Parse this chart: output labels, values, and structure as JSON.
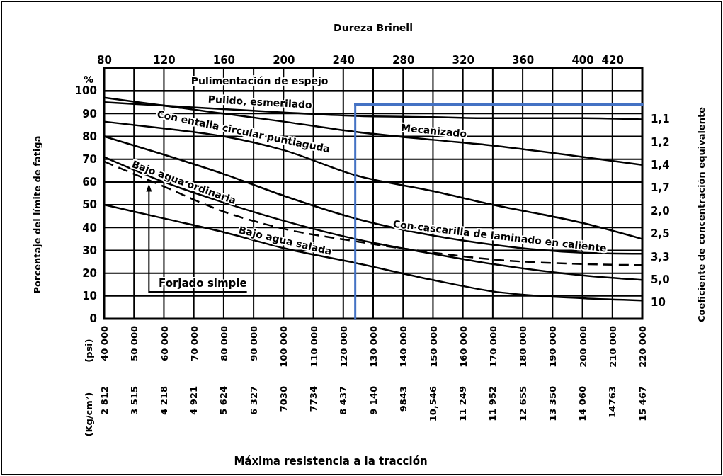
{
  "chart_data": {
    "type": "line",
    "x2label": "Dureza Brinell",
    "ylabel": "Porcentaje del límite de fatiga",
    "annotations": [
      "%",
      "Máxima resistencia a la tracción",
      "(Kg/cm²)",
      "(psi)",
      "Coeficiente de concentración equivalente",
      "2 812",
      "3 515",
      "4 218",
      "4 921",
      "5 624",
      "6 327",
      "7030",
      "7734",
      "8 437",
      "9 140",
      "9843",
      "10,546",
      "11 249",
      "11 952",
      "12 655",
      "13 350",
      "14 060",
      "14763",
      "15 467",
      "1,1",
      "1,2",
      "1,4",
      "1,7",
      "2,0",
      "2,5",
      "3,3",
      "5,0",
      "10"
    ],
    "x": [
      40000,
      60000,
      80000,
      100000,
      124000,
      150000,
      170000,
      200000,
      220000
    ],
    "xlim": [
      40000,
      220000
    ],
    "xticks": [
      {
        "value": 40000,
        "label": "40 000"
      },
      {
        "value": 50000,
        "label": "50 000"
      },
      {
        "value": 60000,
        "label": "60 000"
      },
      {
        "value": 70000,
        "label": "70 000"
      },
      {
        "value": 80000,
        "label": "80 000"
      },
      {
        "value": 90000,
        "label": "90 000"
      },
      {
        "value": 100000,
        "label": "100 000"
      },
      {
        "value": 110000,
        "label": "110 000"
      },
      {
        "value": 120000,
        "label": "120 000"
      },
      {
        "value": 130000,
        "label": "130 000"
      },
      {
        "value": 140000,
        "label": "140 000"
      },
      {
        "value": 150000,
        "label": "150 000"
      },
      {
        "value": 160000,
        "label": "160 000"
      },
      {
        "value": 170000,
        "label": "170 000"
      },
      {
        "value": 180000,
        "label": "180 000"
      },
      {
        "value": 190000,
        "label": "190 000"
      },
      {
        "value": 200000,
        "label": "200 000"
      },
      {
        "value": 210000,
        "label": "210 000"
      },
      {
        "value": 220000,
        "label": "220 000"
      }
    ],
    "x2lim": [
      80,
      440
    ],
    "x2ticks": [
      80,
      120,
      160,
      200,
      240,
      280,
      320,
      360,
      400,
      420
    ],
    "ylim": [
      0,
      110
    ],
    "yticks": [
      0,
      10,
      20,
      30,
      40,
      50,
      60,
      70,
      80,
      90,
      100
    ],
    "grid": true,
    "legend": false,
    "marker": "none",
    "line_style": "solid",
    "series": [
      {
        "name": "Pulimentación de espejo",
        "color": "#000000",
        "values": [
          100,
          100,
          100,
          100,
          100,
          100,
          100,
          100,
          100
        ]
      },
      {
        "name": "Pulido, esmerilado",
        "color": "#000000",
        "values": [
          95,
          93.5,
          92,
          90.5,
          89,
          88.5,
          88,
          88,
          87.5
        ]
      },
      {
        "name": "Mecanizado",
        "color": "#000000",
        "values": [
          97,
          93.5,
          90,
          86.5,
          82,
          78.5,
          76,
          71,
          67.5
        ]
      },
      {
        "name": "Con entalla circular puntiaguda",
        "color": "#000000",
        "values": [
          86.5,
          83.5,
          80,
          74,
          63,
          56,
          50,
          42,
          35
        ]
      },
      {
        "name": "Con cascarilla de laminado en caliente",
        "color": "#000000",
        "values": [
          80,
          72,
          63.5,
          54,
          44,
          36.5,
          32.5,
          29,
          28.5
        ]
      },
      {
        "name": "Bajo agua ordinaria",
        "color": "#000000",
        "values": [
          71,
          60,
          51,
          43,
          35,
          28.5,
          24,
          19,
          17
        ]
      },
      {
        "name": "Forjado simple",
        "color": "#000000",
        "line_style": "dashed",
        "values": [
          69,
          58,
          47,
          39.5,
          34,
          29,
          26,
          24,
          23.5
        ]
      },
      {
        "name": "Bajo agua salada",
        "color": "#000000",
        "values": [
          50,
          44,
          38,
          31,
          24.5,
          17,
          12,
          9,
          8
        ]
      }
    ],
    "ref_lines": [
      {
        "axis": "x",
        "value": 124000,
        "color": "#4472c4"
      },
      {
        "axis": "y",
        "value": 94,
        "color": "#4472c4"
      }
    ]
  }
}
